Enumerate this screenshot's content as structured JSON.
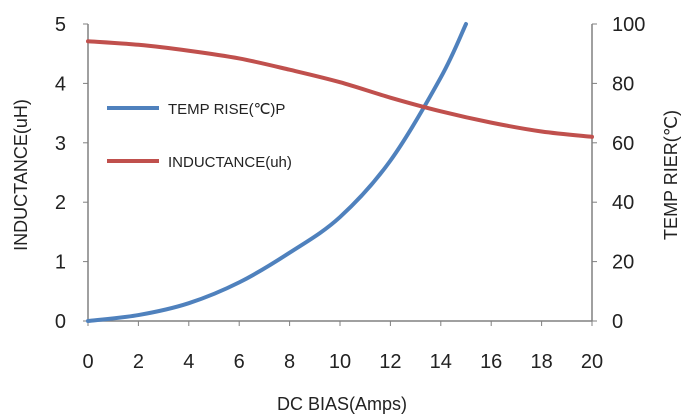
{
  "chart_data": {
    "type": "line",
    "x_label": "DC  BIAS(Amps)",
    "y_left_label": "INDUCTANCE(uH)",
    "y_right_label": "TEMP RIER(℃)",
    "x_ticks": [
      "0",
      "2",
      "4",
      "6",
      "8",
      "10",
      "12",
      "14",
      "16",
      "18",
      "20"
    ],
    "y_left_ticks": [
      "0",
      "1",
      "2",
      "3",
      "4",
      "5"
    ],
    "y_right_ticks": [
      "0",
      "20",
      "40",
      "60",
      "80",
      "100"
    ],
    "x_range": [
      0,
      20
    ],
    "y_left_range": [
      0,
      5
    ],
    "y_right_range": [
      0,
      100
    ],
    "grid": false,
    "legend_position": "upper-left inside plot",
    "series": [
      {
        "name": "TEMP RISE(℃)P",
        "axis": "right",
        "color": "#4f81bd",
        "x": [
          0,
          2,
          4,
          6,
          8,
          10,
          12,
          14,
          15
        ],
        "y": [
          0,
          2,
          6,
          13,
          23,
          35,
          54,
          82,
          100
        ]
      },
      {
        "name": "INDUCTANCE(uh)",
        "axis": "left",
        "color": "#c0504d",
        "x": [
          0,
          2,
          4,
          6,
          8,
          10,
          12,
          14,
          16,
          18,
          20
        ],
        "y": [
          4.71,
          4.65,
          4.55,
          4.42,
          4.23,
          4.02,
          3.76,
          3.53,
          3.34,
          3.19,
          3.1
        ]
      }
    ]
  }
}
